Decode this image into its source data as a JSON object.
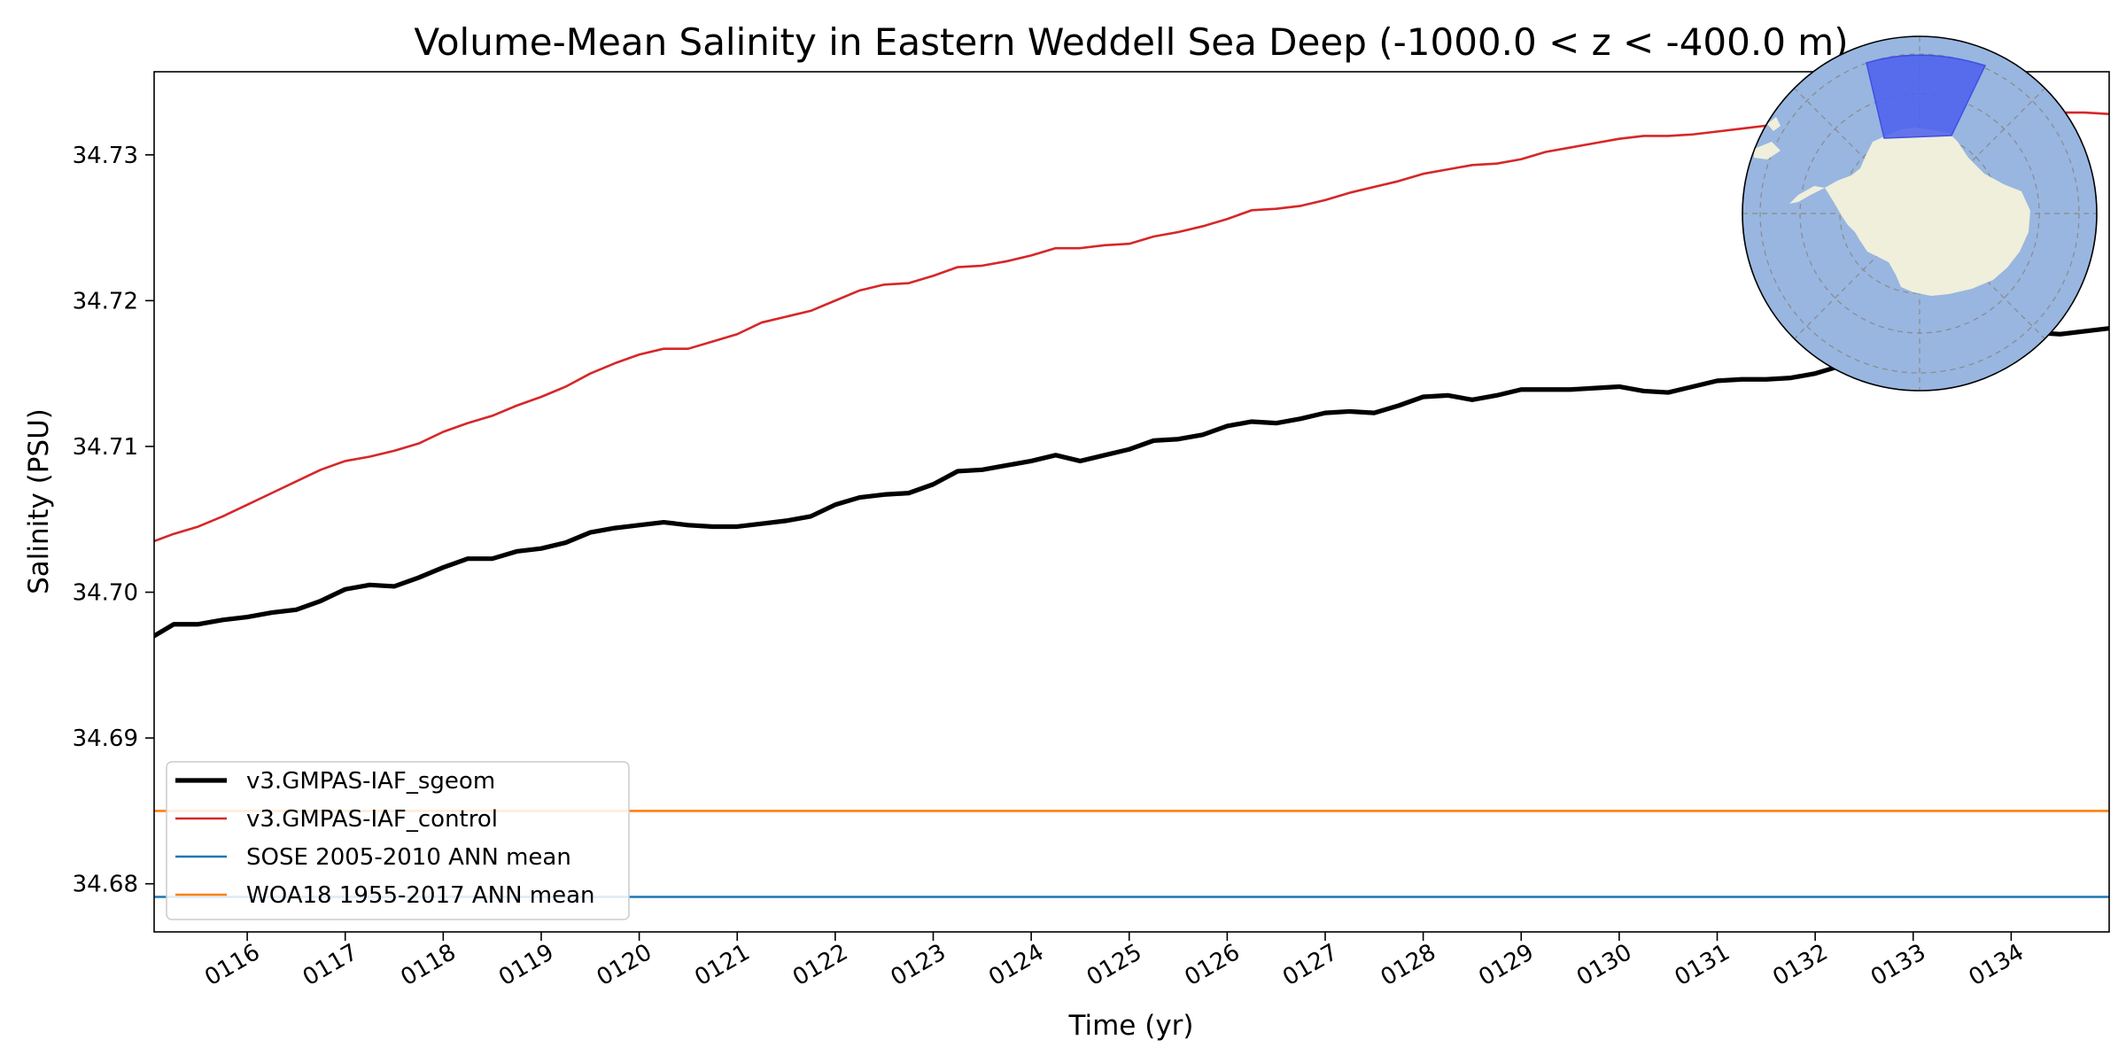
{
  "chart_data": {
    "type": "line",
    "title": "Volume-Mean Salinity in Eastern Weddell Sea Deep (-1000.0 < z < -400.0 m)",
    "xlabel": "Time (yr)",
    "ylabel": "Salinity (PSU)",
    "xlim": [
      115.05,
      135.0
    ],
    "ylim": [
      34.6767,
      34.7357
    ],
    "x_ticks": [
      116,
      117,
      118,
      119,
      120,
      121,
      122,
      123,
      124,
      125,
      126,
      127,
      128,
      129,
      130,
      131,
      132,
      133,
      134
    ],
    "x_tick_labels": [
      "0116",
      "0117",
      "0118",
      "0119",
      "0120",
      "0121",
      "0122",
      "0123",
      "0124",
      "0125",
      "0126",
      "0127",
      "0128",
      "0129",
      "0130",
      "0131",
      "0132",
      "0133",
      "0134"
    ],
    "y_ticks": [
      34.68,
      34.69,
      34.7,
      34.71,
      34.72,
      34.73
    ],
    "y_tick_labels": [
      "34.68",
      "34.69",
      "34.70",
      "34.71",
      "34.72",
      "34.73"
    ],
    "grid": false,
    "legend_position": "lower-left",
    "series": [
      {
        "name": "v3.GMPAS-IAF_sgeom",
        "color": "#000000",
        "style": "solid-thick",
        "x": [
          115.05,
          115.25,
          115.5,
          115.75,
          116.0,
          116.25,
          116.5,
          116.75,
          117.0,
          117.25,
          117.5,
          117.75,
          118.0,
          118.25,
          118.5,
          118.75,
          119.0,
          119.25,
          119.5,
          119.75,
          120.0,
          120.25,
          120.5,
          120.75,
          121.0,
          121.25,
          121.5,
          121.75,
          122.0,
          122.25,
          122.5,
          122.75,
          123.0,
          123.25,
          123.5,
          123.75,
          124.0,
          124.25,
          124.5,
          124.75,
          125.0,
          125.25,
          125.5,
          125.75,
          126.0,
          126.25,
          126.5,
          126.75,
          127.0,
          127.25,
          127.5,
          127.75,
          128.0,
          128.25,
          128.5,
          128.75,
          129.0,
          129.25,
          129.5,
          129.75,
          130.0,
          130.25,
          130.5,
          130.75,
          131.0,
          131.25,
          131.5,
          131.75,
          132.0,
          132.25,
          132.5,
          132.75,
          133.0,
          133.25,
          133.5,
          133.75,
          134.0,
          134.25,
          134.5,
          134.75,
          135.0
        ],
        "values": [
          34.697,
          34.6978,
          34.6978,
          34.6981,
          34.6983,
          34.6986,
          34.6988,
          34.6994,
          34.7002,
          34.7005,
          34.7004,
          34.701,
          34.7017,
          34.7023,
          34.7023,
          34.7028,
          34.703,
          34.7034,
          34.7041,
          34.7044,
          34.7046,
          34.7048,
          34.7046,
          34.7045,
          34.7045,
          34.7047,
          34.7049,
          34.7052,
          34.706,
          34.7065,
          34.7067,
          34.7068,
          34.7074,
          34.7083,
          34.7084,
          34.7087,
          34.709,
          34.7094,
          34.709,
          34.7094,
          34.7098,
          34.7104,
          34.7105,
          34.7108,
          34.7114,
          34.7117,
          34.7116,
          34.7119,
          34.7123,
          34.7124,
          34.7123,
          34.7128,
          34.7134,
          34.7135,
          34.7132,
          34.7135,
          34.7139,
          34.7139,
          34.7139,
          34.714,
          34.7141,
          34.7138,
          34.7137,
          34.7141,
          34.7145,
          34.7146,
          34.7146,
          34.7147,
          34.715,
          34.7155,
          34.716,
          34.7164,
          34.7167,
          34.717,
          34.7172,
          34.7175,
          34.7177,
          34.7178,
          34.7177,
          34.7179,
          34.7181
        ]
      },
      {
        "name": "v3.GMPAS-IAF_control",
        "color": "#d62728",
        "style": "solid",
        "x": [
          115.05,
          115.25,
          115.5,
          115.75,
          116.0,
          116.25,
          116.5,
          116.75,
          117.0,
          117.25,
          117.5,
          117.75,
          118.0,
          118.25,
          118.5,
          118.75,
          119.0,
          119.25,
          119.5,
          119.75,
          120.0,
          120.25,
          120.5,
          120.75,
          121.0,
          121.25,
          121.5,
          121.75,
          122.0,
          122.25,
          122.5,
          122.75,
          123.0,
          123.25,
          123.5,
          123.75,
          124.0,
          124.25,
          124.5,
          124.75,
          125.0,
          125.25,
          125.5,
          125.75,
          126.0,
          126.25,
          126.5,
          126.75,
          127.0,
          127.25,
          127.5,
          127.75,
          128.0,
          128.25,
          128.5,
          128.75,
          129.0,
          129.25,
          129.5,
          129.75,
          130.0,
          130.25,
          130.5,
          130.75,
          131.0,
          131.25,
          131.5,
          131.75,
          132.0,
          132.25,
          132.5,
          132.75,
          133.0,
          133.25,
          133.5,
          133.75,
          134.0,
          134.25,
          134.5,
          134.75,
          135.0
        ],
        "values": [
          34.7035,
          34.704,
          34.7045,
          34.7052,
          34.706,
          34.7068,
          34.7076,
          34.7084,
          34.709,
          34.7093,
          34.7097,
          34.7102,
          34.711,
          34.7116,
          34.7121,
          34.7128,
          34.7134,
          34.7141,
          34.715,
          34.7157,
          34.7163,
          34.7167,
          34.7167,
          34.7172,
          34.7177,
          34.7185,
          34.7189,
          34.7193,
          34.72,
          34.7207,
          34.7211,
          34.7212,
          34.7217,
          34.7223,
          34.7224,
          34.7227,
          34.7231,
          34.7236,
          34.7236,
          34.7238,
          34.7239,
          34.7244,
          34.7247,
          34.7251,
          34.7256,
          34.7262,
          34.7263,
          34.7265,
          34.7269,
          34.7274,
          34.7278,
          34.7282,
          34.7287,
          34.729,
          34.7293,
          34.7294,
          34.7297,
          34.7302,
          34.7305,
          34.7308,
          34.7311,
          34.7313,
          34.7313,
          34.7314,
          34.7316,
          34.7318,
          34.732,
          34.7322,
          34.7324,
          34.7325,
          34.7326,
          34.7327,
          34.7327,
          34.7328,
          34.7328,
          34.7328,
          34.7328,
          34.7329,
          34.7329,
          34.7329,
          34.7328
        ]
      },
      {
        "name": "SOSE 2005-2010 ANN mean",
        "color": "#1f77b4",
        "style": "solid",
        "x": [
          115.05,
          135.0
        ],
        "values": [
          34.6791,
          34.6791
        ]
      },
      {
        "name": "WOA18 1955-2017 ANN mean",
        "color": "#ff7f0e",
        "style": "solid",
        "x": [
          115.05,
          135.0
        ],
        "values": [
          34.685,
          34.685
        ]
      }
    ]
  },
  "inset_map": {
    "ocean_color": "#98b6e0",
    "land_color": "#efefdb",
    "region_color": "#4b5fee"
  }
}
